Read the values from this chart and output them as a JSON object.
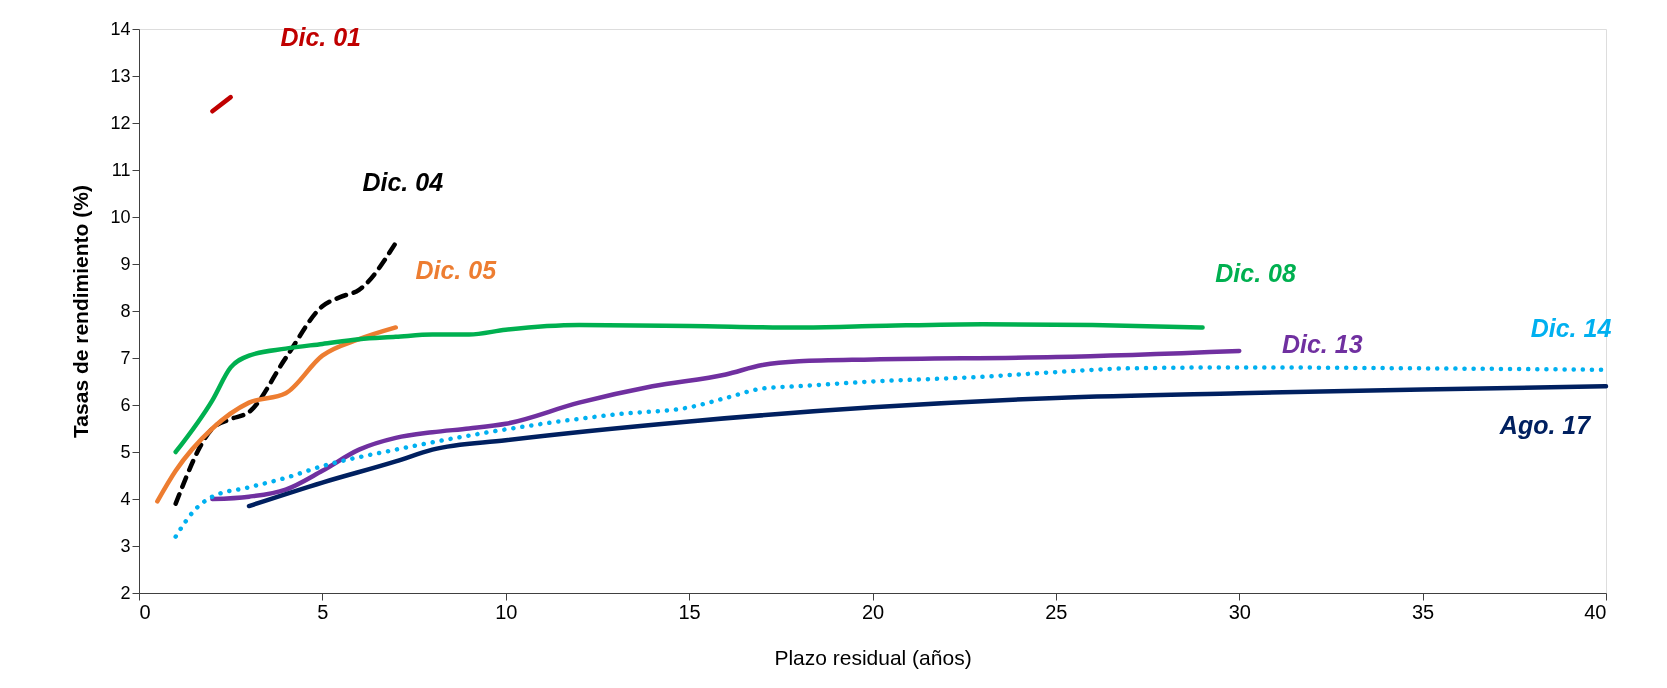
{
  "chart_data": {
    "type": "line",
    "xlabel": "Plazo residual (años)",
    "ylabel": "Tasas de rendimiento (%)",
    "xlim": [
      0,
      40
    ],
    "xticks": [
      0,
      5,
      10,
      15,
      20,
      25,
      30,
      35,
      40
    ],
    "ylim": [
      2,
      14
    ],
    "yticks": [
      2,
      3,
      4,
      5,
      6,
      7,
      8,
      9,
      10,
      11,
      12,
      13,
      14
    ],
    "grid": false,
    "marker": "none",
    "series": [
      {
        "name": "Dic. 01",
        "color": "#c00000",
        "line_style": "solid",
        "x": [
          2,
          2.5
        ],
        "values": [
          12.25,
          12.55
        ]
      },
      {
        "name": "Dic. 04",
        "color": "#000000",
        "line_style": "dashed",
        "x": [
          1,
          2,
          2.5,
          3,
          4,
          5,
          5.5,
          6,
          7
        ],
        "values": [
          3.9,
          5.5,
          5.7,
          5.85,
          7.0,
          8.1,
          8.3,
          8.45,
          9.45
        ]
      },
      {
        "name": "Dic. 05",
        "color": "#ed7d31",
        "line_style": "solid",
        "x": [
          0.5,
          1,
          2,
          3,
          4,
          5,
          6,
          7
        ],
        "values": [
          3.95,
          4.6,
          5.5,
          6.05,
          6.25,
          7.05,
          7.4,
          7.65
        ]
      },
      {
        "name": "Dic. 08",
        "color": "#00b050",
        "line_style": "solid",
        "x": [
          1,
          2,
          2.5,
          3,
          4,
          5,
          6,
          7,
          8,
          9,
          10,
          12,
          15,
          18,
          20,
          23,
          26,
          29
        ],
        "values": [
          5.0,
          6.1,
          6.8,
          7.05,
          7.2,
          7.3,
          7.4,
          7.45,
          7.5,
          7.5,
          7.6,
          7.7,
          7.68,
          7.65,
          7.68,
          7.72,
          7.7,
          7.65
        ]
      },
      {
        "name": "Dic. 13",
        "color": "#7030a0",
        "line_style": "solid",
        "x": [
          2,
          3,
          4,
          5,
          6,
          7,
          8,
          9,
          10,
          12,
          14,
          16,
          17,
          18,
          20,
          25,
          30
        ],
        "values": [
          4.0,
          4.05,
          4.2,
          4.6,
          5.05,
          5.3,
          5.42,
          5.5,
          5.6,
          6.05,
          6.4,
          6.65,
          6.85,
          6.93,
          6.97,
          7.02,
          7.15
        ]
      },
      {
        "name": "Dic. 14",
        "color": "#00b0f0",
        "line_style": "dotted",
        "x": [
          1,
          1.5,
          2,
          3,
          4,
          5,
          7,
          9,
          11,
          13,
          15,
          16,
          17,
          18,
          20,
          23,
          25,
          27,
          30,
          35,
          40
        ],
        "values": [
          3.2,
          3.75,
          4.05,
          4.25,
          4.45,
          4.7,
          5.05,
          5.35,
          5.6,
          5.8,
          5.95,
          6.15,
          6.35,
          6.4,
          6.5,
          6.6,
          6.7,
          6.78,
          6.8,
          6.78,
          6.75
        ]
      },
      {
        "name": "Ago. 17",
        "color": "#002060",
        "line_style": "solid",
        "x": [
          3,
          5,
          7,
          8,
          10,
          15,
          20,
          25,
          30,
          35,
          40
        ],
        "values": [
          3.85,
          4.35,
          4.8,
          5.05,
          5.25,
          5.65,
          5.95,
          6.15,
          6.25,
          6.33,
          6.4
        ]
      }
    ]
  }
}
